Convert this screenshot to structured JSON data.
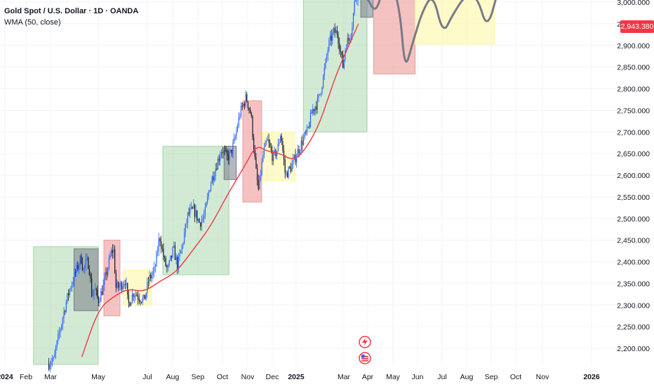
{
  "header": {
    "title": "Gold Spot / U.S. Dollar · 1D · OANDA",
    "indicator": "WMA (50, close)"
  },
  "colors": {
    "background": "#ffffff",
    "grid": "#f0f3fa",
    "candle_up": "#2962ff",
    "candle_down": "#131722",
    "wma": "#f23645",
    "zone_green": "#a5d6a7",
    "zone_red": "#ef9a9a",
    "zone_yellow": "#fff59d",
    "zone_gray": "#787b86",
    "projection": "#787b86",
    "price_tag": "#f23645"
  },
  "icons": [
    "lightning-icon",
    "us-flag-icon"
  ],
  "chart_data": {
    "type": "candlestick",
    "y_axis": {
      "side": "right",
      "ticks": [
        "3,000.000",
        "2,950.000",
        "2,900.000",
        "2,850.000",
        "2,800.000",
        "2,750.000",
        "2,700.000",
        "2,650.000",
        "2,600.000",
        "2,550.000",
        "2,500.000",
        "2,450.000",
        "2,400.000",
        "2,350.000",
        "2,300.000",
        "2,250.000",
        "2,200.000"
      ],
      "tick_values": [
        3000,
        2950,
        2900,
        2850,
        2800,
        2750,
        2700,
        2650,
        2600,
        2550,
        2500,
        2450,
        2400,
        2350,
        2300,
        2250,
        2200
      ],
      "range": [
        2163,
        3004
      ]
    },
    "x_axis": {
      "labels": [
        "2024",
        "Feb",
        "Mar",
        "May",
        "Jul",
        "Aug",
        "Sep",
        "Oct",
        "Nov",
        "Dec",
        "2025",
        "Mar",
        "Apr",
        "May",
        "Jun",
        "Jul",
        "Aug",
        "Sep",
        "Oct",
        "Nov",
        "2026"
      ],
      "bold": [
        "2024",
        "2025",
        "2026"
      ]
    },
    "last_price": "2,943.380",
    "last_value": 2943.38,
    "price_path": [
      [
        "2024-02-28",
        2165
      ],
      [
        "2024-03-03",
        2175
      ],
      [
        "2024-03-05",
        2170
      ],
      [
        "2024-03-08",
        2200
      ],
      [
        "2024-03-14",
        2250
      ],
      [
        "2024-03-20",
        2300
      ],
      [
        "2024-03-26",
        2340
      ],
      [
        "2024-04-01",
        2370
      ],
      [
        "2024-04-05",
        2390
      ],
      [
        "2024-04-09",
        2410
      ],
      [
        "2024-04-12",
        2380
      ],
      [
        "2024-04-16",
        2400
      ],
      [
        "2024-04-19",
        2395
      ],
      [
        "2024-04-23",
        2320
      ],
      [
        "2024-04-26",
        2340
      ],
      [
        "2024-05-01",
        2310
      ],
      [
        "2024-05-07",
        2340
      ],
      [
        "2024-05-12",
        2380
      ],
      [
        "2024-05-17",
        2420
      ],
      [
        "2024-05-20",
        2430
      ],
      [
        "2024-05-23",
        2340
      ],
      [
        "2024-05-29",
        2345
      ],
      [
        "2024-06-04",
        2360
      ],
      [
        "2024-06-07",
        2300
      ],
      [
        "2024-06-14",
        2330
      ],
      [
        "2024-06-20",
        2320
      ],
      [
        "2024-06-27",
        2310
      ],
      [
        "2024-07-03",
        2360
      ],
      [
        "2024-07-10",
        2380
      ],
      [
        "2024-07-16",
        2460
      ],
      [
        "2024-07-22",
        2400
      ],
      [
        "2024-07-26",
        2380
      ],
      [
        "2024-08-02",
        2430
      ],
      [
        "2024-08-07",
        2390
      ],
      [
        "2024-08-13",
        2440
      ],
      [
        "2024-08-20",
        2510
      ],
      [
        "2024-08-27",
        2520
      ],
      [
        "2024-09-03",
        2490
      ],
      [
        "2024-09-09",
        2505
      ],
      [
        "2024-09-16",
        2580
      ],
      [
        "2024-09-23",
        2620
      ],
      [
        "2024-09-30",
        2660
      ],
      [
        "2024-10-07",
        2640
      ],
      [
        "2024-10-11",
        2650
      ],
      [
        "2024-10-16",
        2680
      ],
      [
        "2024-10-22",
        2740
      ],
      [
        "2024-10-30",
        2780
      ],
      [
        "2024-11-05",
        2740
      ],
      [
        "2024-11-11",
        2610
      ],
      [
        "2024-11-14",
        2565
      ],
      [
        "2024-11-20",
        2650
      ],
      [
        "2024-11-25",
        2680
      ],
      [
        "2024-12-02",
        2640
      ],
      [
        "2024-12-08",
        2660
      ],
      [
        "2024-12-12",
        2700
      ],
      [
        "2024-12-18",
        2600
      ],
      [
        "2024-12-26",
        2620
      ],
      [
        "2025-01-02",
        2650
      ],
      [
        "2025-01-09",
        2680
      ],
      [
        "2025-01-15",
        2700
      ],
      [
        "2025-01-21",
        2750
      ],
      [
        "2025-01-28",
        2770
      ],
      [
        "2025-02-03",
        2820
      ],
      [
        "2025-02-10",
        2900
      ],
      [
        "2025-02-16",
        2930
      ],
      [
        "2025-02-21",
        2930
      ],
      [
        "2025-02-28",
        2850
      ],
      [
        "2025-03-04",
        2910
      ],
      [
        "2025-03-07",
        2910
      ],
      [
        "2025-03-12",
        2950
      ],
      [
        "2025-03-15",
        3000
      ],
      [
        "2025-03-20",
        3030
      ]
    ],
    "wma_path": [
      [
        "2024-04-10",
        2180
      ],
      [
        "2024-05-01",
        2290
      ],
      [
        "2024-05-20",
        2320
      ],
      [
        "2024-06-07",
        2338
      ],
      [
        "2024-06-27",
        2330
      ],
      [
        "2024-07-16",
        2355
      ],
      [
        "2024-08-05",
        2375
      ],
      [
        "2024-08-27",
        2430
      ],
      [
        "2024-09-16",
        2480
      ],
      [
        "2024-10-07",
        2555
      ],
      [
        "2024-10-28",
        2620
      ],
      [
        "2024-11-11",
        2670
      ],
      [
        "2024-11-25",
        2655
      ],
      [
        "2024-12-12",
        2650
      ],
      [
        "2024-12-26",
        2635
      ],
      [
        "2025-01-09",
        2650
      ],
      [
        "2025-01-28",
        2710
      ],
      [
        "2025-02-10",
        2780
      ],
      [
        "2025-02-21",
        2840
      ],
      [
        "2025-03-10",
        2910
      ],
      [
        "2025-03-20",
        2950
      ]
    ],
    "projection_path": [
      [
        "2025-03-31",
        3010
      ],
      [
        "2025-04-10",
        2975
      ],
      [
        "2025-04-18",
        3020
      ],
      [
        "2025-04-28",
        3060
      ],
      [
        "2025-05-10",
        2980
      ],
      [
        "2025-05-16",
        2842
      ],
      [
        "2025-05-25",
        2900
      ],
      [
        "2025-06-07",
        2980
      ],
      [
        "2025-06-20",
        3020
      ],
      [
        "2025-07-02",
        2925
      ],
      [
        "2025-07-14",
        2970
      ],
      [
        "2025-08-01",
        3020
      ],
      [
        "2025-08-15",
        3010
      ],
      [
        "2025-08-27",
        2935
      ],
      [
        "2025-09-10",
        3030
      ]
    ],
    "zones": [
      {
        "color": "green",
        "x0": "2024-02-10",
        "x1": "2024-05-01",
        "y0": 2163,
        "y1": 2435
      },
      {
        "color": "gray",
        "x0": "2024-03-31",
        "x1": "2024-05-01",
        "y0": 2287,
        "y1": 2430
      },
      {
        "color": "red",
        "x0": "2024-05-08",
        "x1": "2024-05-28",
        "y0": 2275,
        "y1": 2450
      },
      {
        "color": "yellow",
        "x0": "2024-06-01",
        "x1": "2024-07-06",
        "y0": 2300,
        "y1": 2380
      },
      {
        "color": "green",
        "x0": "2024-07-20",
        "x1": "2024-10-09",
        "y0": 2370,
        "y1": 2667
      },
      {
        "color": "gray",
        "x0": "2024-10-03",
        "x1": "2024-10-18",
        "y0": 2590,
        "y1": 2667
      },
      {
        "color": "red",
        "x0": "2024-10-26",
        "x1": "2024-11-18",
        "y0": 2538,
        "y1": 2772
      },
      {
        "color": "yellow",
        "x0": "2024-11-19",
        "x1": "2024-12-30",
        "y0": 2588,
        "y1": 2700
      },
      {
        "color": "green",
        "x0": "2025-01-10",
        "x1": "2025-03-31",
        "y0": 2700,
        "y1": 3050
      },
      {
        "color": "gray",
        "x0": "2025-03-23",
        "x1": "2025-04-07",
        "y0": 2965,
        "y1": 3050
      },
      {
        "color": "red",
        "x0": "2025-04-08",
        "x1": "2025-05-29",
        "y0": 2834,
        "y1": 3050
      },
      {
        "color": "yellow",
        "x0": "2025-05-29",
        "x1": "2025-09-05",
        "y0": 2903,
        "y1": 3050
      }
    ]
  }
}
